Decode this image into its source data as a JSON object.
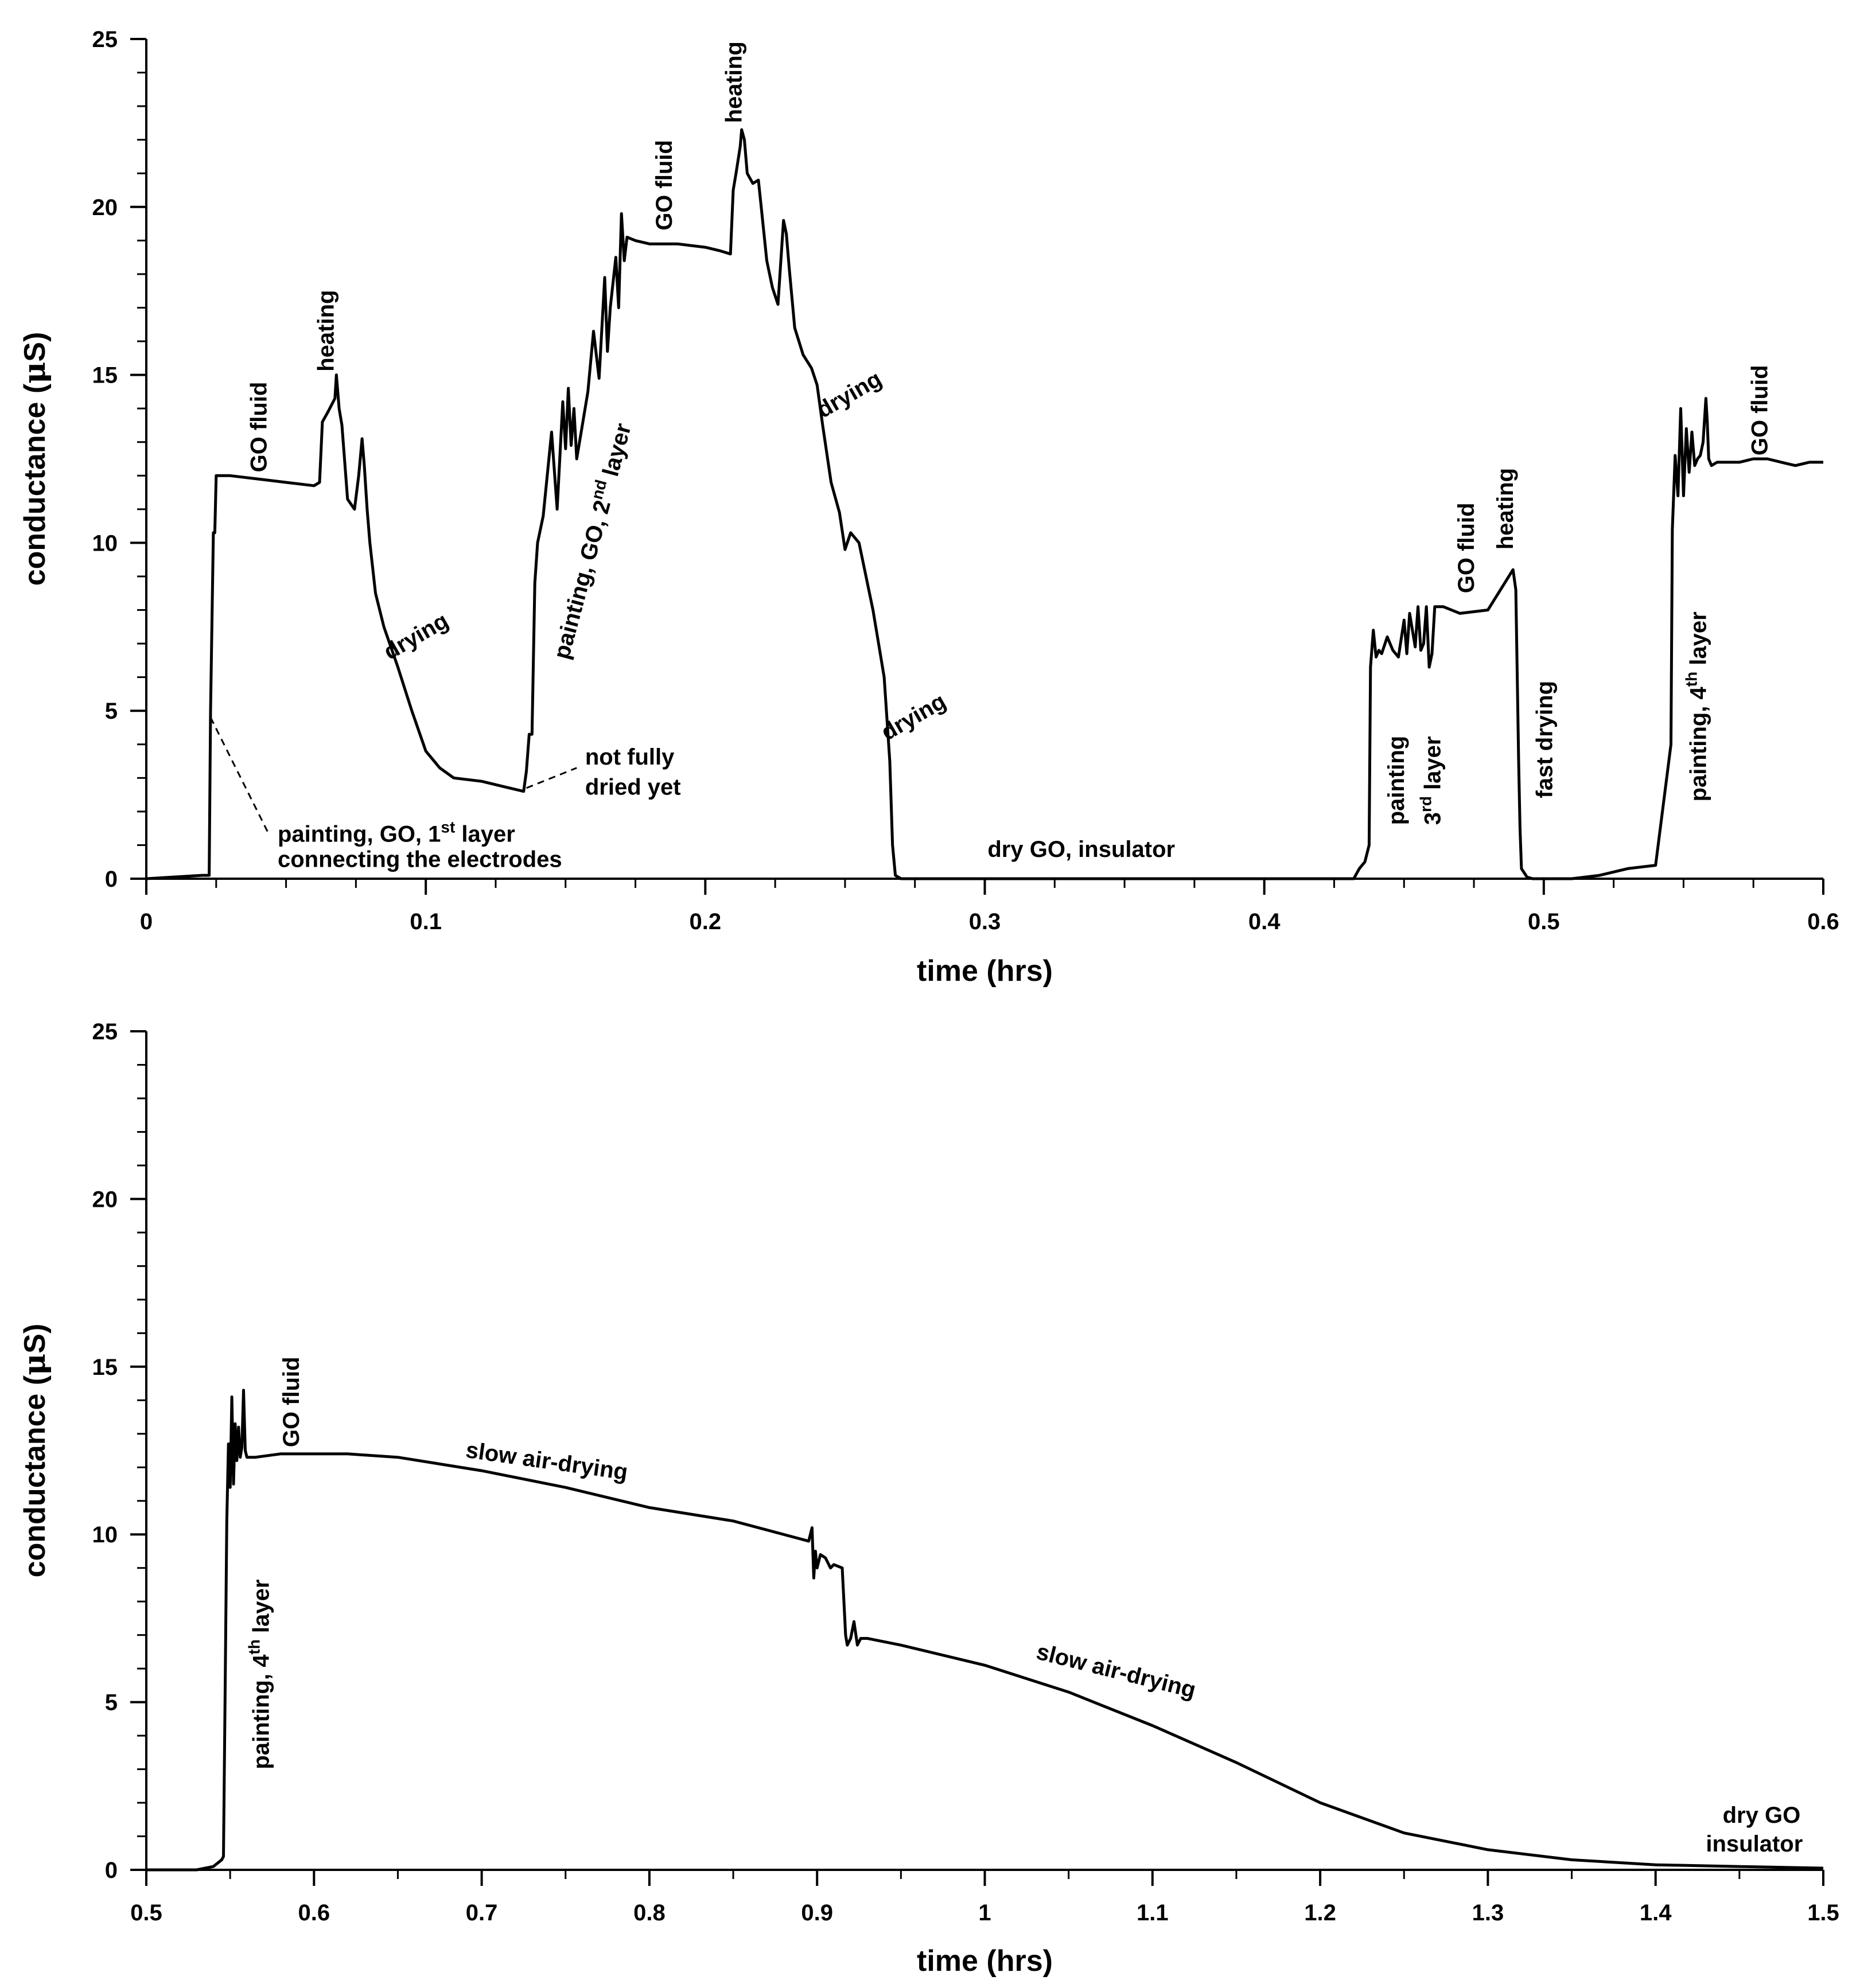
{
  "colors": {
    "line": "#000000",
    "background": "#ffffff"
  },
  "chart_data": [
    {
      "type": "line",
      "title": "",
      "xlabel": "time (hrs)",
      "ylabel_main": "conductance (",
      "ylabel_mu": "μ",
      "ylabel_tail": "S)",
      "xlim": [
        0,
        0.6
      ],
      "ylim": [
        0,
        25
      ],
      "grid": false,
      "xticks": [
        0,
        0.1,
        0.2,
        0.3,
        0.4,
        0.5,
        0.6
      ],
      "xtick_labels": [
        "0",
        "0.1",
        "0.2",
        "0.3",
        "0.4",
        "0.5",
        "0.6"
      ],
      "yticks": [
        0,
        5,
        10,
        15,
        20,
        25
      ],
      "ytick_labels": [
        "0",
        "5",
        "10",
        "15",
        "20",
        "25"
      ],
      "x_minor_step": 0.025,
      "y_minor_step": 1,
      "series": [
        {
          "name": "conductance",
          "x": [
            0,
            0.02,
            0.0225,
            0.023,
            0.024,
            0.0245,
            0.025,
            0.026,
            0.03,
            0.04,
            0.05,
            0.06,
            0.062,
            0.063,
            0.065,
            0.0675,
            0.068,
            0.069,
            0.07,
            0.072,
            0.0745,
            0.076,
            0.0772,
            0.078,
            0.079,
            0.08,
            0.082,
            0.085,
            0.09,
            0.095,
            0.1,
            0.105,
            0.11,
            0.12,
            0.13,
            0.135,
            0.136,
            0.137,
            0.138,
            0.139,
            0.14,
            0.142,
            0.145,
            0.147,
            0.149,
            0.15,
            0.151,
            0.152,
            0.153,
            0.154,
            0.156,
            0.158,
            0.16,
            0.162,
            0.164,
            0.165,
            0.166,
            0.168,
            0.169,
            0.17,
            0.171,
            0.172,
            0.175,
            0.18,
            0.19,
            0.2,
            0.205,
            0.209,
            0.21,
            0.211,
            0.2125,
            0.213,
            0.214,
            0.215,
            0.217,
            0.219,
            0.22,
            0.222,
            0.224,
            0.226,
            0.228,
            0.229,
            0.23,
            0.232,
            0.235,
            0.238,
            0.24,
            0.242,
            0.245,
            0.248,
            0.25,
            0.252,
            0.255,
            0.258,
            0.26,
            0.262,
            0.264,
            0.266,
            0.267,
            0.268,
            0.27,
            0.28,
            0.3,
            0.32,
            0.35,
            0.4,
            0.432,
            0.434,
            0.436,
            0.4375,
            0.438,
            0.439,
            0.44,
            0.441,
            0.442,
            0.444,
            0.446,
            0.448,
            0.45,
            0.451,
            0.452,
            0.454,
            0.455,
            0.456,
            0.457,
            0.458,
            0.459,
            0.46,
            0.461,
            0.462,
            0.464,
            0.47,
            0.48,
            0.489,
            0.49,
            0.4905,
            0.491,
            0.4915,
            0.492,
            0.494,
            0.496,
            0.498,
            0.5,
            0.51,
            0.52,
            0.53,
            0.54,
            0.5455,
            0.546,
            0.547,
            0.548,
            0.549,
            0.55,
            0.551,
            0.552,
            0.553,
            0.554,
            0.555,
            0.556,
            0.557,
            0.558,
            0.5585,
            0.559,
            0.56,
            0.562,
            0.565,
            0.57,
            0.575,
            0.58,
            0.585,
            0.59,
            0.595,
            0.6
          ],
          "y": [
            0,
            0.1,
            0.1,
            5,
            10.3,
            10.3,
            12,
            12,
            12,
            11.9,
            11.8,
            11.7,
            11.8,
            13.6,
            13.9,
            14.3,
            15,
            14,
            13.5,
            11.3,
            11,
            12,
            13.1,
            12.3,
            11,
            10,
            8.5,
            7.5,
            6.3,
            5,
            3.8,
            3.3,
            3,
            2.9,
            2.7,
            2.6,
            3.2,
            4.3,
            4.3,
            8.8,
            10,
            10.8,
            13.3,
            11,
            14.2,
            12.8,
            14.6,
            12.9,
            14,
            12.5,
            13.5,
            14.5,
            16.3,
            14.9,
            17.9,
            15.7,
            17,
            18.5,
            17,
            19.8,
            18.4,
            19.1,
            19,
            18.9,
            18.9,
            18.8,
            18.7,
            18.6,
            20.5,
            21,
            21.8,
            22.3,
            22,
            21,
            20.7,
            20.8,
            20,
            18.4,
            17.6,
            17.1,
            19.6,
            19.2,
            18.2,
            16.4,
            15.6,
            15.2,
            14.7,
            13.5,
            11.8,
            10.9,
            9.8,
            10.3,
            10,
            8.8,
            8,
            7,
            6,
            3.5,
            1,
            0.1,
            0,
            0,
            0,
            0,
            0,
            0,
            0,
            0.3,
            0.5,
            1,
            6.3,
            7.4,
            6.6,
            6.8,
            6.7,
            7.2,
            6.8,
            6.6,
            7.7,
            6.7,
            7.9,
            6.9,
            8.1,
            6.8,
            7,
            8.1,
            6.3,
            6.7,
            8.1,
            8.1,
            8.1,
            7.9,
            8,
            9.2,
            8.6,
            6,
            3.5,
            1.5,
            0.3,
            0.05,
            0,
            0,
            0,
            0,
            0.1,
            0.3,
            0.4,
            4,
            10.4,
            12.6,
            11.4,
            14,
            11.4,
            13.4,
            12.1,
            13.3,
            12.3,
            12.5,
            12.6,
            13,
            14.3,
            13.6,
            12.5,
            12.3,
            12.4,
            12.4,
            12.4,
            12.5,
            12.5,
            12.4,
            12.3,
            12.4,
            12.4
          ]
        }
      ],
      "annotations": [
        {
          "text": "GO fluid",
          "x": 0.043,
          "y": 12.1,
          "rotate": -90
        },
        {
          "text": "heating",
          "x": 0.067,
          "y": 15.1,
          "rotate": -90
        },
        {
          "text": "drying",
          "x": 0.087,
          "y": 6.5,
          "rotate": -30
        },
        {
          "text": "painting, GO, 2",
          "sup": "nd",
          "tail": " layer",
          "x": 0.151,
          "y": 6.5,
          "rotate": -75
        },
        {
          "text": "GO fluid",
          "x": 0.188,
          "y": 19.3,
          "rotate": -90
        },
        {
          "text": "heating",
          "x": 0.213,
          "y": 22.5,
          "rotate": -90
        },
        {
          "text": "drying",
          "x": 0.242,
          "y": 13.7,
          "rotate": -30
        },
        {
          "text": "drying",
          "x": 0.265,
          "y": 4.1,
          "rotate": -30
        },
        {
          "text": "dry GO, insulator",
          "x": 0.301,
          "y": 0.65,
          "rotate": 0
        },
        {
          "text": "painting",
          "x": 0.45,
          "y": 1.6,
          "rotate": -90
        },
        {
          "text": "3",
          "sup": "rd",
          "tail": " layer",
          "x": 0.463,
          "y": 1.6,
          "rotate": -90
        },
        {
          "text": "GO fluid",
          "x": 0.475,
          "y": 8.5,
          "rotate": -90
        },
        {
          "text": "heating",
          "x": 0.489,
          "y": 9.8,
          "rotate": -90
        },
        {
          "text": "fast drying",
          "x": 0.503,
          "y": 2.4,
          "rotate": -90
        },
        {
          "text": "painting, 4",
          "sup": "th",
          "tail": " layer",
          "x": 0.558,
          "y": 2.3,
          "rotate": -90
        },
        {
          "text": "GO fluid",
          "x": 0.58,
          "y": 12.6,
          "rotate": -90
        },
        {
          "text": "not fully",
          "x": 0.157,
          "y": 3.4,
          "rotate": 0
        },
        {
          "text": "dried yet",
          "x": 0.157,
          "y": 2.5,
          "rotate": 0
        },
        {
          "text": "painting, GO, 1",
          "sup": "st",
          "tail": " layer",
          "x": 0.047,
          "y": 1.1,
          "rotate": 0
        },
        {
          "text": "connecting the electrodes",
          "x": 0.047,
          "y": 0.35,
          "rotate": 0
        }
      ],
      "leaders": [
        {
          "x1": 0.023,
          "y1": 4.8,
          "x2": 0.044,
          "y2": 1.3
        },
        {
          "x1": 0.136,
          "y1": 2.7,
          "x2": 0.154,
          "y2": 3.3
        }
      ]
    },
    {
      "type": "line",
      "title": "",
      "xlabel": "time (hrs)",
      "ylabel_main": "conductance (",
      "ylabel_mu": "μ",
      "ylabel_tail": "S)",
      "xlim": [
        0.5,
        1.5
      ],
      "ylim": [
        0,
        25
      ],
      "grid": false,
      "xticks": [
        0.5,
        0.6,
        0.7,
        0.8,
        0.9,
        1,
        1.1,
        1.2,
        1.3,
        1.4,
        1.5
      ],
      "xtick_labels": [
        "0.5",
        "0.6",
        "0.7",
        "0.8",
        "0.9",
        "1",
        "1.1",
        "1.2",
        "1.3",
        "1.4",
        "1.5"
      ],
      "yticks": [
        0,
        5,
        10,
        15,
        20,
        25
      ],
      "ytick_labels": [
        "0",
        "5",
        "10",
        "15",
        "20",
        "25"
      ],
      "x_minor_step": 0.05,
      "y_minor_step": 1,
      "series": [
        {
          "name": "conductance",
          "x": [
            0.5,
            0.53,
            0.54,
            0.545,
            0.546,
            0.547,
            0.548,
            0.549,
            0.55,
            0.551,
            0.552,
            0.553,
            0.554,
            0.555,
            0.556,
            0.557,
            0.558,
            0.559,
            0.56,
            0.565,
            0.58,
            0.6,
            0.62,
            0.65,
            0.7,
            0.75,
            0.8,
            0.85,
            0.895,
            0.897,
            0.898,
            0.899,
            0.9,
            0.902,
            0.905,
            0.908,
            0.91,
            0.915,
            0.917,
            0.918,
            0.92,
            0.922,
            0.924,
            0.926,
            0.93,
            0.95,
            1,
            1.05,
            1.1,
            1.15,
            1.2,
            1.25,
            1.3,
            1.35,
            1.4,
            1.45,
            1.5
          ],
          "y": [
            0,
            0,
            0.1,
            0.3,
            0.4,
            5.3,
            10.4,
            12.7,
            11.4,
            14.1,
            11.5,
            13.3,
            12.2,
            13.2,
            12.3,
            12.6,
            14.3,
            12.5,
            12.3,
            12.3,
            12.4,
            12.4,
            12.4,
            12.3,
            11.9,
            11.4,
            10.8,
            10.4,
            9.8,
            10.2,
            8.7,
            9.5,
            9,
            9.4,
            9.3,
            9,
            9.1,
            9,
            7,
            6.7,
            6.9,
            7.4,
            6.7,
            6.9,
            6.9,
            6.7,
            6.1,
            5.3,
            4.3,
            3.2,
            2,
            1.1,
            0.6,
            0.3,
            0.15,
            0.1,
            0.05
          ]
        }
      ],
      "annotations": [
        {
          "text": "GO fluid",
          "x": 0.591,
          "y": 12.6,
          "rotate": -90
        },
        {
          "text": "painting, 4",
          "sup": "th",
          "tail": " layer",
          "x": 0.573,
          "y": 3.0,
          "rotate": -90
        },
        {
          "text": "slow air-drying",
          "x": 0.69,
          "y": 12.3,
          "rotate": 8
        },
        {
          "text": "slow air-drying",
          "x": 1.03,
          "y": 6.3,
          "rotate": 14
        },
        {
          "text": "dry GO",
          "x": 1.44,
          "y": 1.4,
          "rotate": 0
        },
        {
          "text": "insulator",
          "x": 1.43,
          "y": 0.55,
          "rotate": 0
        }
      ],
      "leaders": []
    }
  ]
}
